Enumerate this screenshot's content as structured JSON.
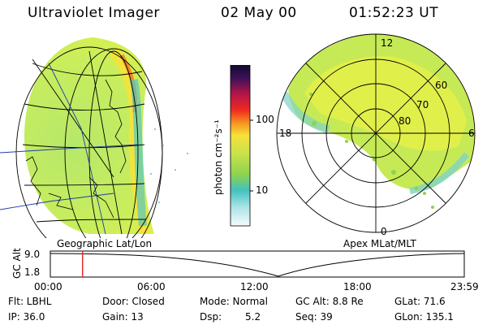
{
  "header": {
    "instrument": "Ultraviolet Imager",
    "date": "02 May 00",
    "time": "01:52:23 UT"
  },
  "colorbar": {
    "label": "photon cm⁻²s⁻¹",
    "ticks": [
      "100",
      "10"
    ]
  },
  "polar_plot": {
    "mlt_labels": {
      "top": "12",
      "left": "18",
      "right": "6",
      "bottom": "0"
    },
    "mlat_labels": [
      "60",
      "70",
      "80"
    ]
  },
  "map_labels": {
    "left": "Geographic Lat/Lon",
    "right": "Apex MLat/MLT"
  },
  "timeline": {
    "ylabel": "GC Alt",
    "yticks": [
      "9.0",
      "1.8"
    ],
    "xticks": [
      "00:00",
      "06:00",
      "12:00",
      "18:00",
      "23:59"
    ],
    "marker_hour": 1.87
  },
  "status": {
    "flt": "Flt: LBHL",
    "ip": "IP: 36.0",
    "door": "Door: Closed",
    "gain": "Gain: 13",
    "mode": "Mode: Normal",
    "dsp_label": "Dsp:",
    "dsp_value": "5.2",
    "gc_alt": "GC Alt: 8.8 Re",
    "seq": "Seq: 39",
    "glat": "GLat: 71.6",
    "glon": "GLon: 135.1"
  },
  "colors": {
    "marker": "#e8231f",
    "grid": "#000000"
  }
}
